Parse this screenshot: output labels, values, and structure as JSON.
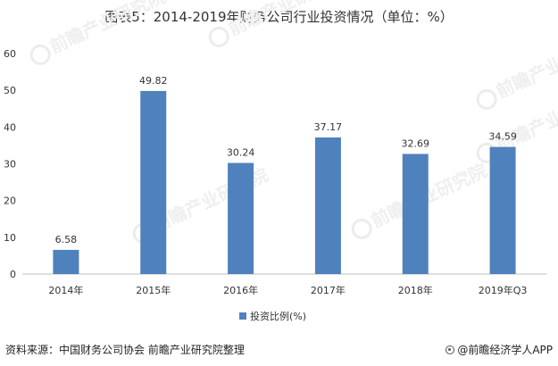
{
  "header": {
    "title": "图表5：2014-2019年财务公司行业投资情况（单位：%）"
  },
  "footer": {
    "source": "资料来源：中国财务公司协会  前瞻产业研究院整理",
    "brand": "@前瞻经济学人APP"
  },
  "watermark": {
    "text": "前瞻产业研究院"
  },
  "colors": {
    "bar": "#4f81bd",
    "axis": "#bfbfbf"
  },
  "chart_data": {
    "type": "bar",
    "title": "图表5：2014-2019年财务公司行业投资情况（单位：%）",
    "categories": [
      "2014年",
      "2015年",
      "2016年",
      "2017年",
      "2018年",
      "2019年Q3"
    ],
    "series": [
      {
        "name": "投资比例(%)",
        "values": [
          6.58,
          49.82,
          30.24,
          37.17,
          32.69,
          34.59
        ],
        "labels": [
          "6.58",
          "49.82",
          "30.24",
          "37.17",
          "32.69",
          "34.59"
        ]
      }
    ],
    "ylim": [
      0,
      60
    ],
    "yticks": [
      0,
      10,
      20,
      30,
      40,
      50,
      60
    ],
    "xlabel": "",
    "ylabel": "",
    "grid": false,
    "legend_position": "bottom"
  }
}
